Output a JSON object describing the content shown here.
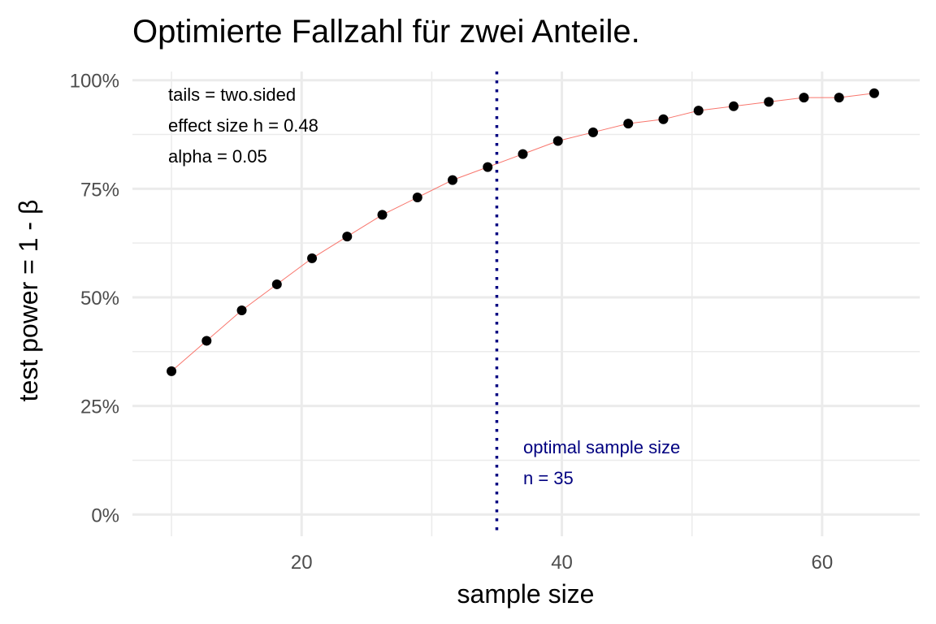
{
  "chart_data": {
    "type": "scatter",
    "title": "Optimierte Fallzahl für zwei Anteile.",
    "xlabel": "sample size",
    "ylabel": "test power = 1 - β",
    "xlim": [
      7,
      67.5
    ],
    "ylim": [
      -0.05,
      1.02
    ],
    "x_ticks": [
      20,
      40,
      60
    ],
    "x_tick_labels": [
      "20",
      "40",
      "60"
    ],
    "x_minor_ticks": [
      10,
      30,
      50
    ],
    "y_ticks": [
      0,
      0.25,
      0.5,
      0.75,
      1.0
    ],
    "y_tick_labels": [
      "0%",
      "25%",
      "50%",
      "75%",
      "100%"
    ],
    "y_minor_ticks": [
      0.125,
      0.375,
      0.625,
      0.875
    ],
    "grid": true,
    "series": [
      {
        "points_color": "#000000",
        "line_color": "#f8766d",
        "x": [
          10,
          12.7,
          15.4,
          18.1,
          20.8,
          23.5,
          26.2,
          28.9,
          31.6,
          34.3,
          37.0,
          39.7,
          42.4,
          45.1,
          47.8,
          50.5,
          53.2,
          55.9,
          58.6,
          61.3,
          64.0
        ],
        "y": [
          0.33,
          0.4,
          0.47,
          0.53,
          0.59,
          0.64,
          0.69,
          0.73,
          0.77,
          0.8,
          0.83,
          0.86,
          0.88,
          0.9,
          0.91,
          0.93,
          0.94,
          0.95,
          0.96,
          0.96,
          0.97
        ]
      }
    ],
    "optimal_line": {
      "x": 35,
      "color": "#000080",
      "style": "dotted"
    },
    "annotations": {
      "params": [
        "tails = two.sided",
        "effect size h = 0.48",
        "alpha = 0.05"
      ],
      "optimal": [
        "optimal sample size",
        "n = 35"
      ]
    }
  }
}
